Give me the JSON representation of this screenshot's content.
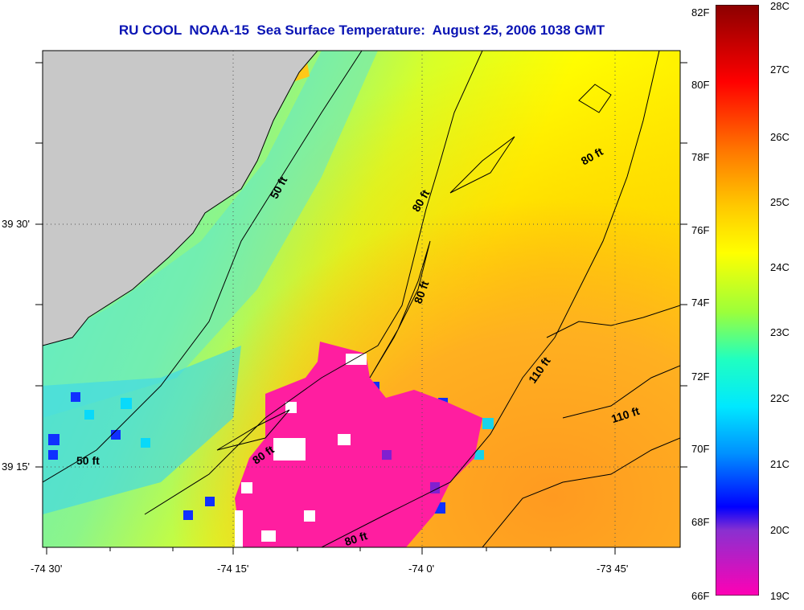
{
  "title": "RU COOL  NOAA-15  Sea Surface Temperature:  August 25, 2006 1038 GMT",
  "axes": {
    "lon_ticks": [
      "-74 30'",
      "-74 15'",
      "-74 0'",
      "-73 45'"
    ],
    "lat_ticks": [
      "39 30'",
      "39 15'"
    ]
  },
  "contour_labels": [
    "50 ft",
    "50 ft",
    "80 ft",
    "80 ft",
    "80 ft",
    "80 ft",
    "80 ft",
    "110 ft",
    "110 ft"
  ],
  "colorbar": {
    "fahrenheit": [
      "82F",
      "80F",
      "78F",
      "76F",
      "74F",
      "72F",
      "70F",
      "68F",
      "66F"
    ],
    "celsius": [
      "28C",
      "27C",
      "26C",
      "25C",
      "24C",
      "23C",
      "22C",
      "21C",
      "20C",
      "19C"
    ]
  },
  "colors": {
    "land": "#c8c8c8",
    "warm": "#ff9f1a",
    "mild": "#e6ff1a",
    "cool": "#44f0d8",
    "cold_upwelling": "#ff1ea0",
    "title": "#0a14b4"
  },
  "icons": [
    "land-mask",
    "sst-field",
    "bathymetry-contours"
  ]
}
